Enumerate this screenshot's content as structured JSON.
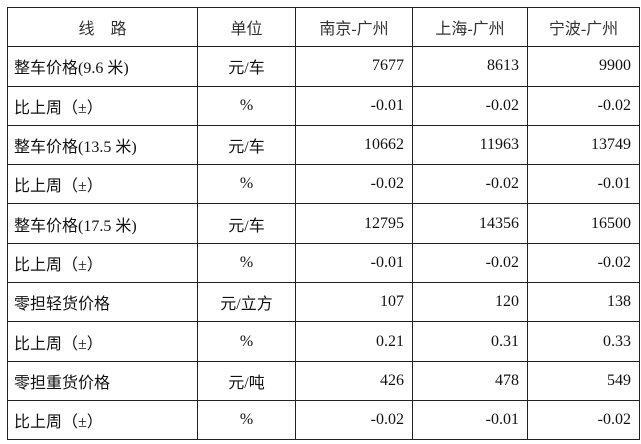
{
  "table": {
    "headers": [
      "线　路",
      "单位",
      "南京-广州",
      "上海-广州",
      "宁波-广州"
    ],
    "rows": [
      {
        "label": "整车价格(9.6 米)",
        "unit": "元/车",
        "values": [
          "7677",
          "8613",
          "9900"
        ]
      },
      {
        "label": "比上周（±）",
        "unit": "%",
        "values": [
          "-0.01",
          "-0.02",
          "-0.02"
        ]
      },
      {
        "label": "整车价格(13.5 米)",
        "unit": "元/车",
        "values": [
          "10662",
          "11963",
          "13749"
        ]
      },
      {
        "label": "比上周（±）",
        "unit": "%",
        "values": [
          "-0.02",
          "-0.02",
          "-0.01"
        ]
      },
      {
        "label": "整车价格(17.5 米)",
        "unit": "元/车",
        "values": [
          "12795",
          "14356",
          "16500"
        ]
      },
      {
        "label": "比上周（±）",
        "unit": "%",
        "values": [
          "-0.01",
          "-0.02",
          "-0.02"
        ]
      },
      {
        "label": "零担轻货价格",
        "unit": "元/立方",
        "values": [
          "107",
          "120",
          "138"
        ]
      },
      {
        "label": "比上周（±）",
        "unit": "%",
        "values": [
          "0.21",
          "0.31",
          "0.33"
        ]
      },
      {
        "label": "零担重货价格",
        "unit": "元/吨",
        "values": [
          "426",
          "478",
          "549"
        ]
      },
      {
        "label": "比上周（±）",
        "unit": "%",
        "values": [
          "-0.02",
          "-0.01",
          "-0.02"
        ]
      }
    ]
  }
}
